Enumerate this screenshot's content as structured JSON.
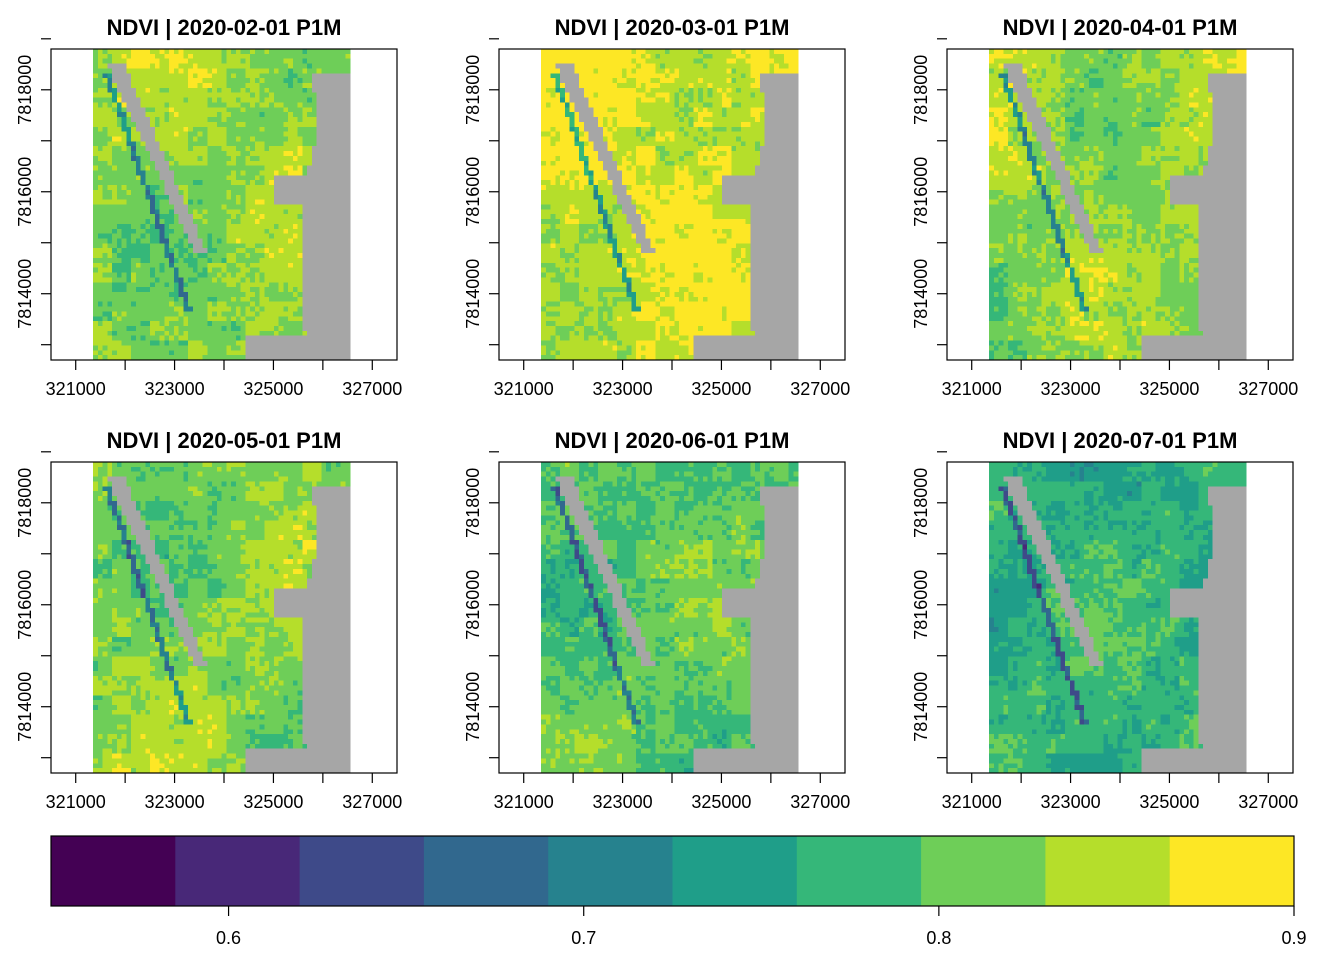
{
  "figure": {
    "variable": "NDVI",
    "no_data_color": "#a6a6a6",
    "background_color": "#ffffff"
  },
  "chart_data": {
    "type": "heatmap",
    "panels": [
      {
        "title": "NDVI | 2020-02-01 P1M",
        "date": "2020-02-01",
        "period": "P1M",
        "base_ndvi": 0.83
      },
      {
        "title": "NDVI | 2020-03-01 P1M",
        "date": "2020-03-01",
        "period": "P1M",
        "base_ndvi": 0.86
      },
      {
        "title": "NDVI | 2020-04-01 P1M",
        "date": "2020-04-01",
        "period": "P1M",
        "base_ndvi": 0.83
      },
      {
        "title": "NDVI | 2020-05-01 P1M",
        "date": "2020-05-01",
        "period": "P1M",
        "base_ndvi": 0.82
      },
      {
        "title": "NDVI | 2020-06-01 P1M",
        "date": "2020-06-01",
        "period": "P1M",
        "base_ndvi": 0.8
      },
      {
        "title": "NDVI | 2020-07-01 P1M",
        "date": "2020-07-01",
        "period": "P1M",
        "base_ndvi": 0.77
      }
    ],
    "x_axis": {
      "ticks": [
        321000,
        322000,
        323000,
        324000,
        325000,
        326000,
        327000
      ],
      "tick_labels": [
        "321000",
        "323000",
        "325000",
        "327000"
      ],
      "xlim": [
        320500,
        327500
      ],
      "data_extent": [
        321350,
        326550
      ]
    },
    "y_axis": {
      "ticks": [
        7813000,
        7814000,
        7815000,
        7816000,
        7817000,
        7818000,
        7819000
      ],
      "tick_labels": [
        "7814000",
        "7816000",
        "7818000"
      ],
      "ylim": [
        7812700,
        7818800
      ],
      "data_extent": [
        7812700,
        7818800
      ]
    },
    "colorbar": {
      "range": [
        0.55,
        0.9
      ],
      "breaks": [
        0.55,
        0.585,
        0.62,
        0.655,
        0.69,
        0.725,
        0.76,
        0.795,
        0.83,
        0.865,
        0.9
      ],
      "colors": [
        "#440154",
        "#482878",
        "#3e4a89",
        "#31688e",
        "#26828e",
        "#1f9e89",
        "#35b779",
        "#6ece58",
        "#b5de2b",
        "#fde725"
      ],
      "ticks": [
        0.6,
        0.7,
        0.8,
        0.9
      ],
      "tick_labels": [
        "0.6",
        "0.7",
        "0.8",
        "0.9"
      ]
    }
  }
}
